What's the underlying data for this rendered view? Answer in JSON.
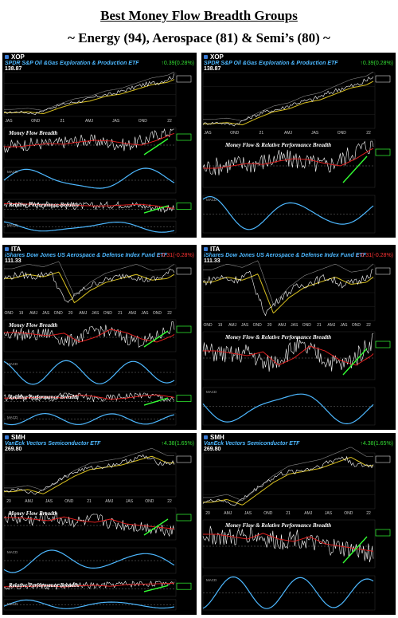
{
  "page": {
    "title": "Best Money Flow Breadth Groups",
    "subtitle": "~ Energy (94), Aerospace (81) & Semi’s (80) ~"
  },
  "colors": {
    "up": "#33dd33",
    "down": "#ff3333",
    "cyan": "#4db8ff",
    "green_line": "#33ff33",
    "red_line": "#e02020",
    "yellow": "#d8c020"
  },
  "panels": [
    {
      "id": "xop-left",
      "symbol": "XOP",
      "name": "SPDR S&P Oil &Gas Exploration & Production ETF",
      "change": "↑0.39(0.28%)",
      "dir": "up",
      "price": "138.87",
      "label1": "Money Flow Breadth",
      "label2": "Relative Performance Breadth",
      "xticks": [
        "JAS",
        "OND",
        "21",
        "AMJ",
        "JAS",
        "OND",
        "22"
      ],
      "subyears": "2021"
    },
    {
      "id": "xop-right",
      "symbol": "XOP",
      "name": "SPDR S&P Oil &Gas Exploration & Production ETF",
      "change": "↑0.39(0.28%)",
      "dir": "up",
      "price": "138.87",
      "label1": "Money Flow & Relative Performance Breadth",
      "label2": "",
      "xticks": [
        "JAS",
        "OND",
        "21",
        "AMJ",
        "JAS",
        "OND",
        "22"
      ],
      "subyears": "2021"
    },
    {
      "id": "ita-left",
      "symbol": "ITA",
      "name": "iShares Dow Jones US Aerospace & Defense Index Fund ETF",
      "change": "↓-0.31(-0.28%)",
      "dir": "down",
      "price": "111.33",
      "label1": "Money Flow Breadth",
      "label2": "Relative Performance Breadth",
      "xticks": [
        "OND",
        "19",
        "AMJ",
        "JAS",
        "OND",
        "20",
        "AMJ",
        "JAS",
        "OND",
        "21",
        "AMJ",
        "JAS",
        "OND",
        "22"
      ],
      "subyears": "2019 2020"
    },
    {
      "id": "ita-right",
      "symbol": "ITA",
      "name": "iShares Dow Jones US Aerospace & Defense Index Fund ETF",
      "change": "↓-0.31(-0.28%)",
      "dir": "down",
      "price": "111.33",
      "label1": "Money Flow & Relative Performance Breadth",
      "label2": "",
      "xticks": [
        "OND",
        "19",
        "AMJ",
        "JAS",
        "OND",
        "20",
        "AMJ",
        "JAS",
        "OND",
        "21",
        "AMJ",
        "JAS",
        "OND",
        "22"
      ],
      "subyears": "2019 2020"
    },
    {
      "id": "smh-left",
      "symbol": "SMH",
      "name": "VanEck Vectors Semiconductor ETF",
      "change": "↑4.38(1.65%)",
      "dir": "up",
      "price": "269.80",
      "label1": "Money Flow Breadth",
      "label2": "Relative Performance Breadth",
      "xticks": [
        "20",
        "AMJ",
        "JAS",
        "OND",
        "21",
        "AMJ",
        "JAS",
        "OND",
        "22"
      ],
      "subyears": "2020"
    },
    {
      "id": "smh-right",
      "symbol": "SMH",
      "name": "VanEck Vectors Semiconductor ETF",
      "change": "↑4.38(1.65%)",
      "dir": "up",
      "price": "269.80",
      "label1": "Money Flow & Relative Performance Breadth",
      "label2": "",
      "xticks": [
        "20",
        "AMJ",
        "JAS",
        "OND",
        "21",
        "AMJ",
        "JAS",
        "OND",
        "22"
      ],
      "subyears": "2020"
    }
  ],
  "chart_data": [
    {
      "type": "line",
      "symbol": "XOP",
      "title": "SPDR S&P Oil &Gas Exploration & Production ETF",
      "last": 138.87,
      "trend": [
        60,
        62,
        58,
        70,
        80,
        85,
        95,
        100,
        110,
        120,
        125,
        138.87
      ],
      "breadth_trend": [
        40,
        45,
        50,
        48,
        55,
        60,
        58,
        50,
        45,
        60,
        80,
        90
      ]
    },
    {
      "type": "line",
      "symbol": "ITA",
      "title": "iShares Dow Jones US Aerospace & Defense Index Fund ETF",
      "last": 111.33,
      "trend": [
        100,
        105,
        102,
        108,
        70,
        85,
        95,
        100,
        105,
        98,
        100,
        111.33
      ],
      "breadth_trend": [
        60,
        55,
        50,
        58,
        30,
        45,
        70,
        60,
        40,
        30,
        50,
        85
      ]
    },
    {
      "type": "line",
      "symbol": "SMH",
      "title": "VanEck Vectors Semiconductor ETF",
      "last": 269.8,
      "trend": [
        140,
        150,
        130,
        170,
        210,
        240,
        250,
        260,
        280,
        300,
        270,
        269.8
      ],
      "breadth_trend": [
        70,
        65,
        60,
        72,
        60,
        55,
        65,
        50,
        45,
        40,
        35,
        30
      ]
    }
  ]
}
